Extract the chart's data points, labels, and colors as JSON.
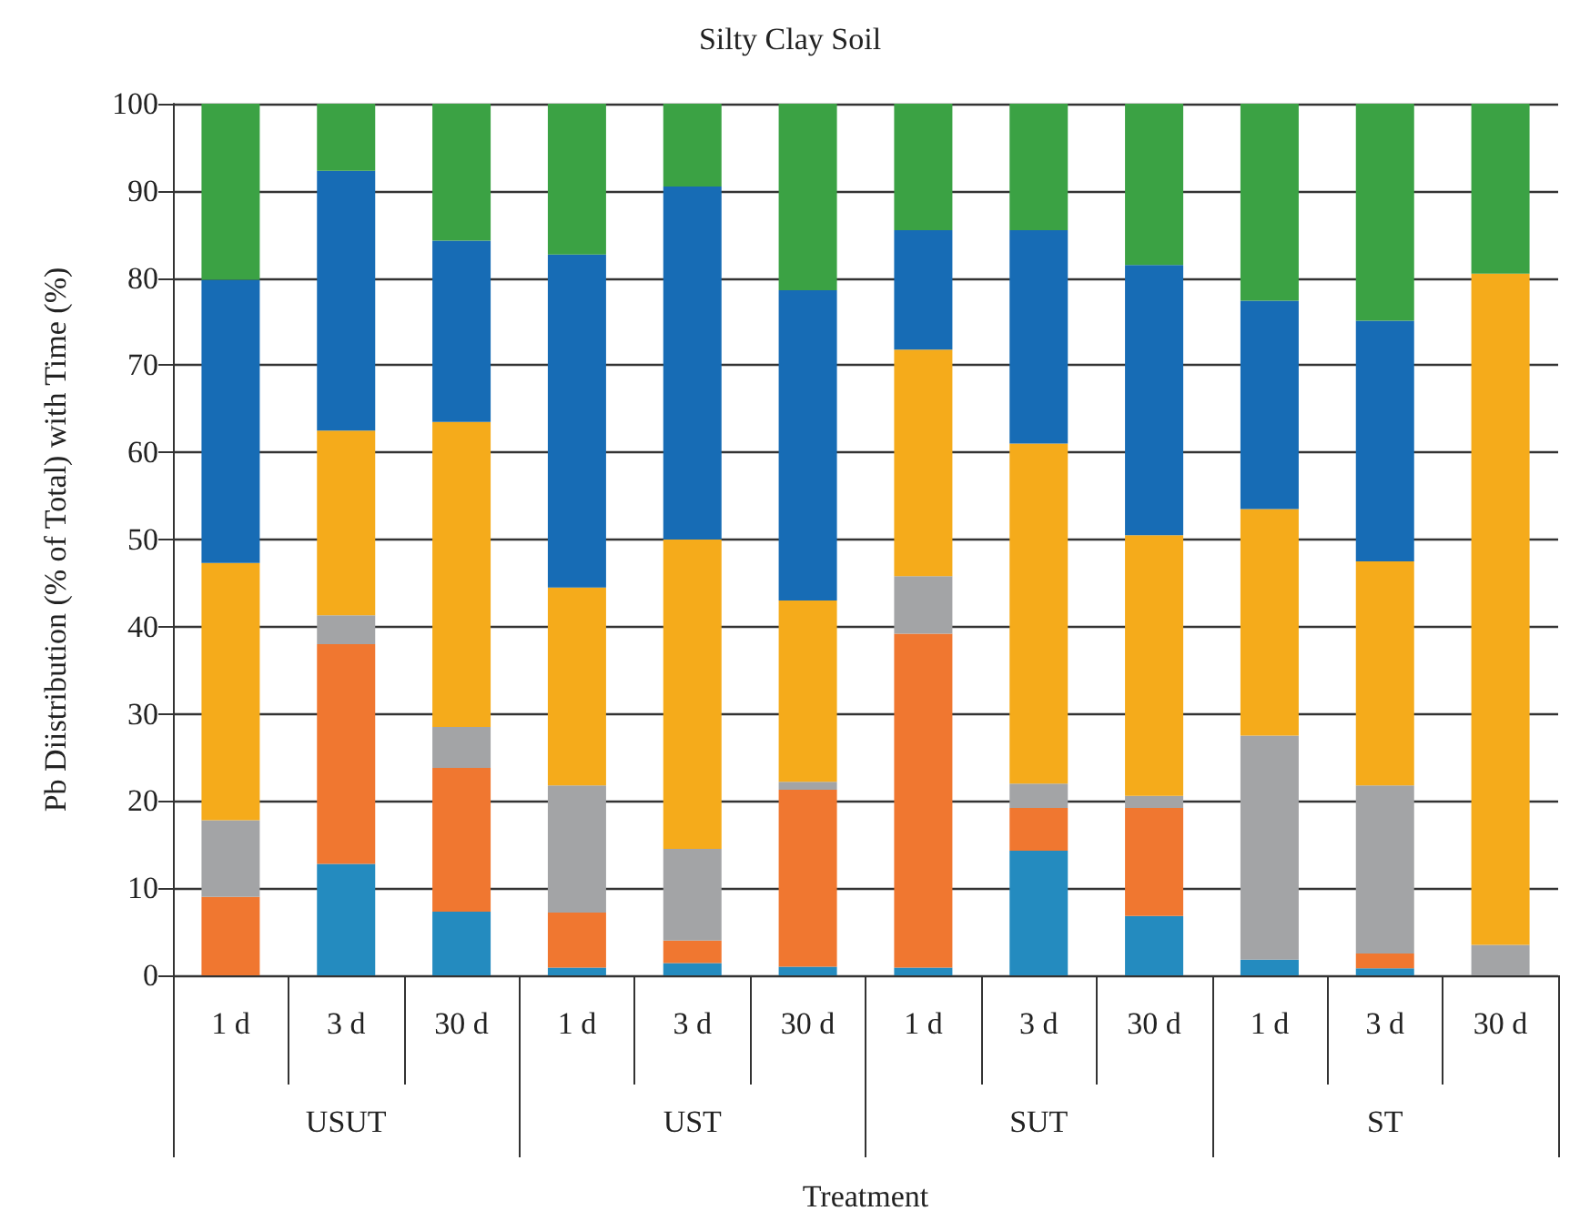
{
  "chart_data": {
    "type": "bar",
    "title": "Silty Clay Soil",
    "xlabel": "Treatment",
    "ylabel": "Pb Diistribution (% of Total) with Time (%)",
    "categories": [
      "1 d",
      "3 d",
      "30 d",
      "1 d",
      "3 d",
      "30 d",
      "1 d",
      "3 d",
      "30 d",
      "1 d",
      "3 d",
      "30 d"
    ],
    "annotations": [
      "USUT",
      "UST",
      "SUT",
      "ST"
    ],
    "stacked": true,
    "ylim": [
      0,
      100
    ],
    "yticks": [
      0,
      10,
      20,
      30,
      40,
      50,
      60,
      70,
      80,
      90,
      100
    ],
    "grid": "y",
    "series": [
      {
        "color": "#248bbf",
        "values": [
          0,
          12.8,
          7.3,
          0.9,
          1.4,
          1,
          0.9,
          14.3,
          6.8,
          1.8,
          0.8,
          0
        ]
      },
      {
        "color": "#f07730",
        "values": [
          9,
          25.2,
          16.5,
          6.3,
          2.6,
          20.3,
          38.3,
          4.9,
          12.4,
          0,
          1.7,
          0
        ]
      },
      {
        "color": "#a3a4a6",
        "values": [
          8.8,
          3.3,
          4.7,
          14.6,
          10.5,
          0.9,
          6.6,
          2.8,
          1.4,
          25.7,
          19.3,
          3.5
        ]
      },
      {
        "color": "#f5ab1b",
        "values": [
          29.5,
          21.2,
          35,
          22.7,
          35.5,
          20.8,
          26,
          39,
          29.9,
          26,
          25.7,
          77
        ]
      },
      {
        "color": "#176cb5",
        "values": [
          32.5,
          29.8,
          20.8,
          38.2,
          40.5,
          35.6,
          13.7,
          24.5,
          31,
          23.9,
          27.6,
          0
        ]
      },
      {
        "color": "#3ba244",
        "values": [
          20.2,
          7.7,
          15.7,
          17.3,
          9.5,
          21.4,
          14.5,
          14.5,
          18.5,
          22.6,
          24.9,
          19.5
        ]
      }
    ]
  }
}
